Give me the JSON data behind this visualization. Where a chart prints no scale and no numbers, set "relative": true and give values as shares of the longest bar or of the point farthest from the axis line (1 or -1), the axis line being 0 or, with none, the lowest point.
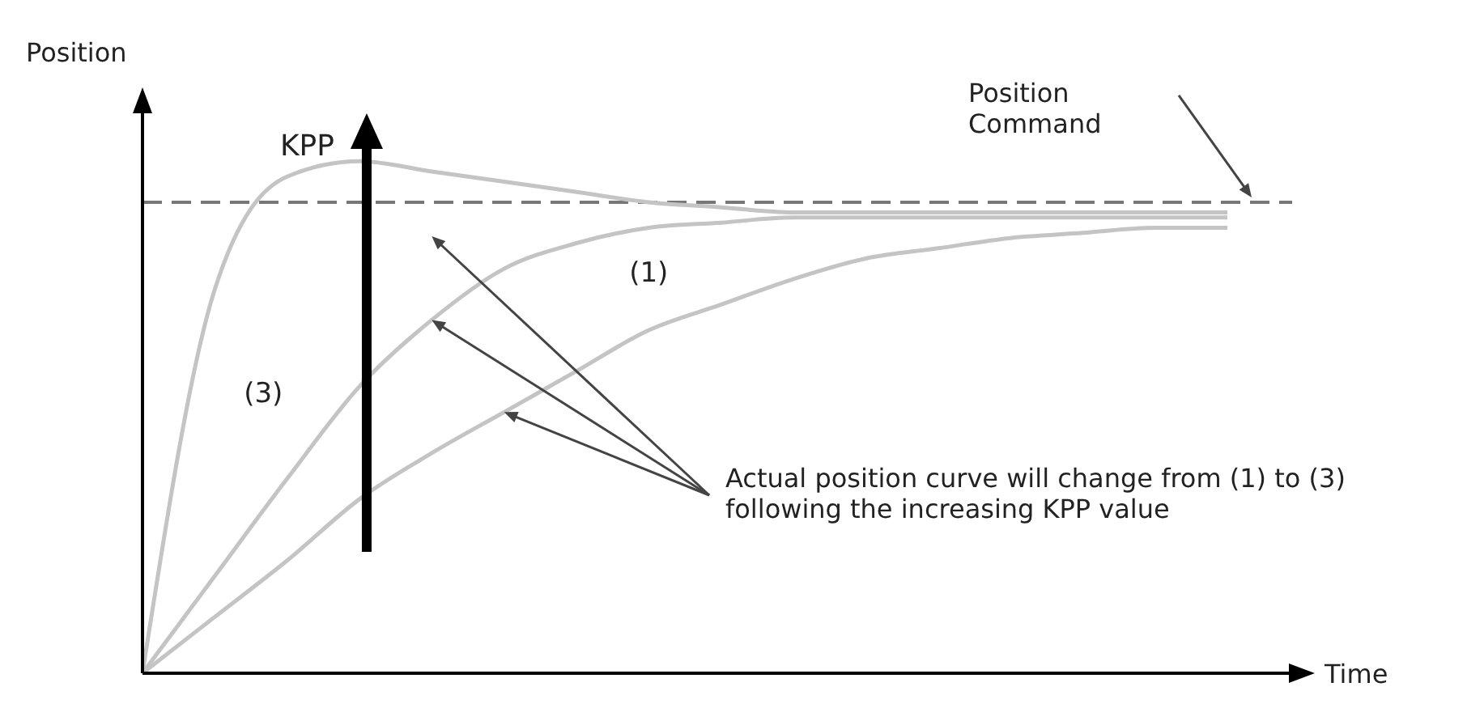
{
  "chart_data": {
    "type": "line",
    "relative": true,
    "xlabel": "Time",
    "ylabel": "Position",
    "categories": [
      null,
      null,
      null,
      null,
      null,
      null,
      null,
      null,
      null,
      null,
      null,
      null,
      null,
      null,
      null,
      null
    ],
    "series": [
      {
        "name": "(1)",
        "color": "#c4c4c4",
        "values": [
          0,
          0.11,
          0.22,
          0.34,
          0.43,
          0.51,
          0.59,
          0.67,
          0.72,
          0.77,
          0.81,
          0.83,
          0.85,
          0.86,
          0.87,
          0.87
        ]
      },
      {
        "color": "#c4c4c4",
        "values": [
          0,
          0.19,
          0.38,
          0.56,
          0.69,
          0.79,
          0.84,
          0.87,
          0.88,
          0.89,
          0.89,
          0.89,
          0.89,
          0.89,
          0.89,
          0.89
        ]
      },
      {
        "name": "(3)",
        "color": "#c4c4c4",
        "values": [
          0,
          0.75,
          0.97,
          1,
          0.98,
          0.96,
          0.94,
          0.92,
          0.91,
          0.9,
          0.9,
          0.9,
          0.9,
          0.9,
          0.9,
          0.9
        ]
      }
    ],
    "ref_lines": [
      {
        "axis": "y",
        "value": 0.92,
        "label": "Position Command",
        "line_style": "dashed",
        "color": "#777777"
      }
    ],
    "annotations": [
      "KPP",
      "Actual position curve will change from (1) to (3) following the increasing KPP value"
    ],
    "legend": false
  }
}
